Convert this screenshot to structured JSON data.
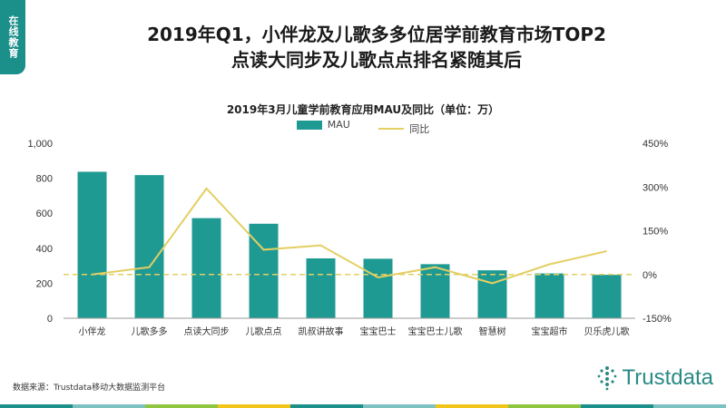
{
  "header": {
    "tag": "在线教育",
    "title_line1": "2019年Q1，小伴龙及儿歌多多位居学前教育市场TOP2",
    "title_line2": "点读大同步及儿歌点点排名紧随其后"
  },
  "chart_data": {
    "type": "bar",
    "title": "2019年3月儿童学前教育应用MAU及同比（单位：万）",
    "categories": [
      "小伴龙",
      "儿歌多多",
      "点读大同步",
      "儿歌点点",
      "凯叔讲故事",
      "宝宝巴士",
      "宝宝巴士儿歌",
      "智慧树",
      "宝宝超市",
      "贝乐虎儿歌"
    ],
    "series": [
      {
        "name": "MAU",
        "type": "bar",
        "axis": "left",
        "color": "#1f9a93",
        "values": [
          837,
          818,
          572,
          540,
          342,
          340,
          309,
          274,
          256,
          248
        ]
      },
      {
        "name": "同比",
        "type": "line",
        "axis": "right",
        "color": "#e3cf63",
        "values": [
          0,
          25,
          295,
          85,
          100,
          -10,
          25,
          -30,
          35,
          80
        ]
      }
    ],
    "left_axis": {
      "min": 0,
      "max": 1000,
      "ticks": [
        "0",
        "200",
        "400",
        "600",
        "800",
        "1,000"
      ]
    },
    "right_axis": {
      "min": -150,
      "max": 450,
      "ticks": [
        "-150%",
        "0%",
        "150%",
        "300%",
        "450%"
      ],
      "reference_line": 0,
      "reference_style": "dashed"
    },
    "legend": "top-center",
    "grid": false
  },
  "footer": {
    "source": "数据来源：Trustdata移动大数据监测平台",
    "logo_text": "Trustdata",
    "band_colors": [
      "#1b8f8a",
      "#7dc2c0",
      "#8fc63f",
      "#f0c419",
      "#1b8f8a",
      "#7dc2c0",
      "#f0c419",
      "#8fc63f",
      "#1b8f8a",
      "#7dc2c0"
    ]
  }
}
